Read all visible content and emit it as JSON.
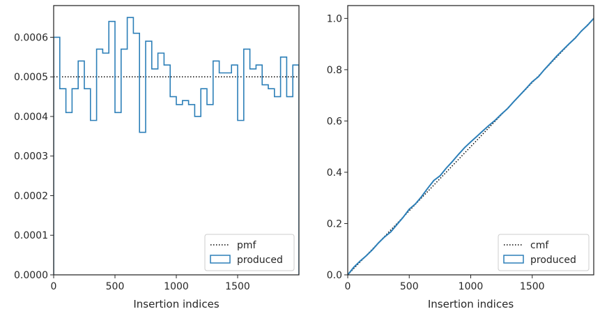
{
  "chart_data": [
    {
      "type": "histogram-step",
      "xlabel": "Insertion indices",
      "ylabel": "",
      "xlim": [
        0,
        2000
      ],
      "ylim": [
        0,
        0.00068
      ],
      "x_ticks": [
        0,
        500,
        1000,
        1500
      ],
      "x_tick_labels": [
        "0",
        "500",
        "1000",
        "1500"
      ],
      "y_ticks": [
        0,
        0.0001,
        0.0002,
        0.0003,
        0.0004,
        0.0005,
        0.0006
      ],
      "y_tick_labels": [
        "0.0000",
        "0.0001",
        "0.0002",
        "0.0003",
        "0.0004",
        "0.0005",
        "0.0006"
      ],
      "legend_position": "lower-right",
      "reference": {
        "name": "pmf",
        "value": 0.0005,
        "style": "dotted",
        "color": "#000000"
      },
      "series": [
        {
          "name": "produced",
          "color": "#2c7fb8",
          "bin_edges": [
            0,
            50,
            100,
            150,
            200,
            250,
            300,
            350,
            400,
            450,
            500,
            550,
            600,
            650,
            700,
            750,
            800,
            850,
            900,
            950,
            1000,
            1050,
            1100,
            1150,
            1200,
            1250,
            1300,
            1350,
            1400,
            1450,
            1500,
            1550,
            1600,
            1650,
            1700,
            1750,
            1800,
            1850,
            1900,
            1950,
            2000
          ],
          "values": [
            0.0006,
            0.00047,
            0.00041,
            0.00047,
            0.00054,
            0.00047,
            0.00039,
            0.00057,
            0.00056,
            0.00064,
            0.00041,
            0.00057,
            0.00065,
            0.00061,
            0.00036,
            0.00059,
            0.00052,
            0.00056,
            0.00053,
            0.00045,
            0.00043,
            0.00044,
            0.00043,
            0.0004,
            0.00047,
            0.00043,
            0.00054,
            0.00051,
            0.00051,
            0.00053,
            0.00039,
            0.00057,
            0.00052,
            0.00053,
            0.00048,
            0.00047,
            0.00045,
            0.00055,
            0.00045,
            0.00053
          ]
        }
      ]
    },
    {
      "type": "line",
      "xlabel": "Insertion indices",
      "ylabel": "",
      "xlim": [
        0,
        2000
      ],
      "ylim": [
        0,
        1.05
      ],
      "x_ticks": [
        0,
        500,
        1000,
        1500
      ],
      "x_tick_labels": [
        "0",
        "500",
        "1000",
        "1500"
      ],
      "y_ticks": [
        0,
        0.2,
        0.4,
        0.6,
        0.8,
        1.0
      ],
      "y_tick_labels": [
        "0.0",
        "0.2",
        "0.4",
        "0.6",
        "0.8",
        "1.0"
      ],
      "legend_position": "lower-right",
      "reference": {
        "name": "cmf",
        "from": [
          0,
          0
        ],
        "to": [
          2000,
          1.0
        ],
        "style": "dotted",
        "color": "#000000"
      },
      "series": [
        {
          "name": "produced",
          "color": "#2c7fb8",
          "x": [
            0,
            50,
            100,
            150,
            200,
            250,
            300,
            350,
            400,
            450,
            500,
            550,
            600,
            650,
            700,
            750,
            800,
            850,
            900,
            950,
            1000,
            1050,
            1100,
            1150,
            1200,
            1250,
            1300,
            1350,
            1400,
            1450,
            1500,
            1550,
            1600,
            1650,
            1700,
            1750,
            1800,
            1850,
            1900,
            1950,
            2000
          ],
          "y": [
            0,
            0.03,
            0.0535,
            0.074,
            0.0975,
            0.1245,
            0.148,
            0.1675,
            0.196,
            0.224,
            0.256,
            0.2765,
            0.305,
            0.3375,
            0.368,
            0.386,
            0.4155,
            0.4415,
            0.4695,
            0.496,
            0.5185,
            0.54,
            0.562,
            0.5835,
            0.6035,
            0.627,
            0.6485,
            0.6755,
            0.701,
            0.7265,
            0.753,
            0.7725,
            0.801,
            0.827,
            0.8535,
            0.8775,
            0.901,
            0.9235,
            0.951,
            0.9735,
            1.0
          ]
        }
      ]
    }
  ]
}
